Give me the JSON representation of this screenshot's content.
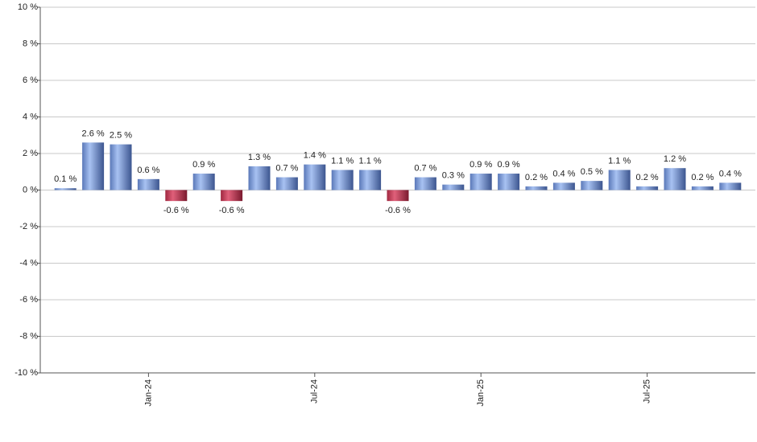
{
  "chart_data": {
    "type": "bar",
    "categories": [
      null,
      null,
      null,
      "Jan-24",
      null,
      null,
      null,
      null,
      null,
      "Jul-24",
      null,
      null,
      null,
      null,
      null,
      "Jan-25",
      null,
      null,
      null,
      null,
      null,
      "Jul-25",
      null,
      null,
      null
    ],
    "values": [
      0.1,
      2.6,
      2.5,
      0.6,
      -0.6,
      0.9,
      -0.6,
      1.3,
      0.7,
      1.4,
      1.1,
      1.1,
      -0.6,
      0.7,
      0.3,
      0.9,
      0.9,
      0.2,
      0.4,
      0.5,
      1.1,
      0.2,
      1.2,
      0.2,
      0.4
    ],
    "value_labels": [
      "0.1 %",
      "2.6 %",
      "2.5 %",
      "0.6 %",
      "-0.6 %",
      "0.9 %",
      "-0.6 %",
      "1.3 %",
      "0.7 %",
      "1.4 %",
      "1.1 %",
      "1.1 %",
      "-0.6 %",
      "0.7 %",
      "0.3 %",
      "0.9 %",
      "0.9 %",
      "0.2 %",
      "0.4 %",
      "0.5 %",
      "1.1 %",
      "0.2 %",
      "1.2 %",
      "0.2 %",
      "0.4 %"
    ],
    "color": "#7f9fdf",
    "negative_color": "#c8405a",
    "ylim": [
      -10,
      10
    ],
    "yticks": [
      {
        "value": -10,
        "label": "-10 %"
      },
      {
        "value": -8,
        "label": "-8 %"
      },
      {
        "value": -6,
        "label": "-6 %"
      },
      {
        "value": -4,
        "label": "-4 %"
      },
      {
        "value": -2,
        "label": "-2 %"
      },
      {
        "value": 0,
        "label": "0 %"
      },
      {
        "value": 2,
        "label": "2 %"
      },
      {
        "value": 4,
        "label": "4 %"
      },
      {
        "value": 6,
        "label": "6 %"
      },
      {
        "value": 8,
        "label": "8 %"
      },
      {
        "value": 10,
        "label": "10 %"
      }
    ],
    "grid": true
  }
}
